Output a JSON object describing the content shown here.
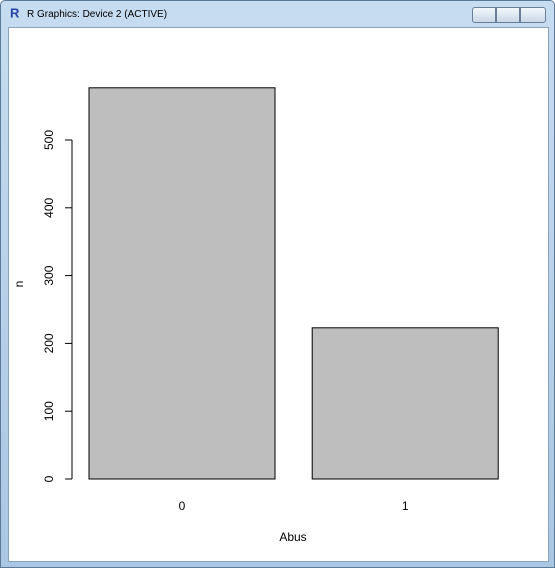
{
  "window": {
    "title": "R Graphics: Device 2 (ACTIVE)"
  },
  "chart_data": {
    "type": "bar",
    "xlabel": "Abus",
    "ylabel": "n",
    "categories": [
      "0",
      "1"
    ],
    "values": [
      577,
      223
    ],
    "color": "#bebebe",
    "ylim": [
      0,
      600
    ],
    "yticks": [
      0,
      100,
      200,
      300,
      400,
      500
    ]
  }
}
